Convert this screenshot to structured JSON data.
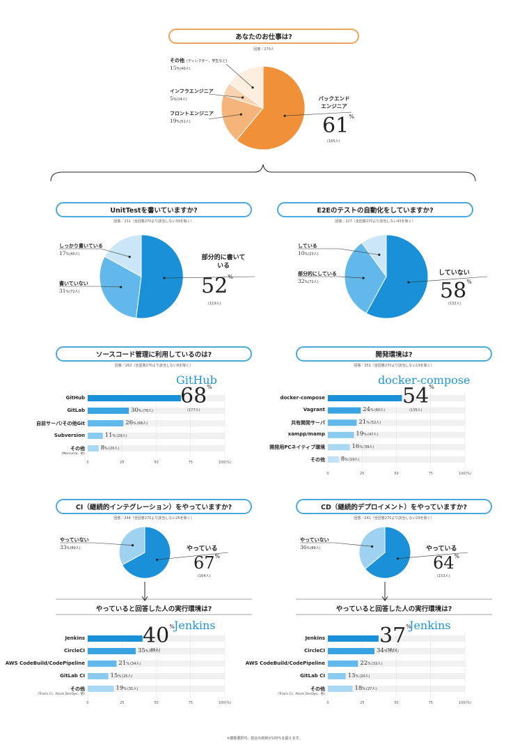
{
  "footnote": "※複数選択可。割合の総和が100%を超えます。",
  "chart_data": [
    {
      "id": "job",
      "type": "pie",
      "title": "あなたのお仕事は?",
      "note": "回答／270人",
      "slices": [
        {
          "label": "バックエンドエンジニア",
          "value": 61,
          "count": "(165人)"
        },
        {
          "label": "フロントエンジニア",
          "value": 19,
          "count": "(51人)"
        },
        {
          "label": "インフラエンジニア",
          "value": 5,
          "count": "(14人)"
        },
        {
          "label": "その他",
          "sublabel": "(ディレクター、学生など)",
          "value": 15,
          "count": "(40人)"
        }
      ],
      "colors": [
        "#f0913a",
        "#f5b47a",
        "#f9d3b0",
        "#fdeedf"
      ]
    },
    {
      "id": "unittest",
      "type": "pie",
      "title": "UnitTestを書いていますか?",
      "note": "回答／231（全回答270より該当しない39を除く）",
      "slices": [
        {
          "label": "部分的に書いている",
          "value": 52,
          "count": "(119人)"
        },
        {
          "label": "書いていない",
          "value": 31,
          "count": "(72人)"
        },
        {
          "label": "しっかり書いている",
          "value": 17,
          "count": "(40人)"
        }
      ],
      "colors": [
        "#1990d8",
        "#62b8ea",
        "#cbe6f6"
      ]
    },
    {
      "id": "e2e",
      "type": "pie",
      "title": "E2Eのテストの自動化をしていますか?",
      "note": "回答／227（全回答270より該当しない43を除く）",
      "slices": [
        {
          "label": "していない",
          "value": 58,
          "count": "(132人)"
        },
        {
          "label": "部分的にしている",
          "value": 32,
          "count": "(72人)"
        },
        {
          "label": "している",
          "value": 10,
          "count": "(23人)"
        }
      ],
      "colors": [
        "#1990d8",
        "#62b8ea",
        "#cbe6f6"
      ]
    },
    {
      "id": "vcs",
      "type": "bar",
      "title": "ソースコード管理に利用しているのは?",
      "note": "回答／262（全回答270より該当しない8を除く）",
      "highlight": "GitHub",
      "categories": [
        "GitHub",
        "GitLab",
        "自前サーバ/その他Git",
        "Subversion",
        "その他"
      ],
      "subcategory": "(Mercurial、他)",
      "values": [
        68,
        30,
        26,
        11,
        8
      ],
      "counts": [
        "(177人)",
        "(78人)",
        "(68人)",
        "(29人)",
        "(20人)"
      ],
      "xticks": [
        0,
        25,
        50,
        75,
        "100(%)"
      ],
      "xlim": [
        0,
        100
      ]
    },
    {
      "id": "devenv",
      "type": "bar",
      "title": "開発環境は?",
      "note": "回答／251（全回答270より該当しない19を除く）",
      "highlight": "docker-compose",
      "categories": [
        "docker-compose",
        "Vagrant",
        "共有開発サーバ",
        "xampp/mamp",
        "開発用PCネイティブ環境",
        "その他"
      ],
      "values": [
        54,
        24,
        21,
        19,
        16,
        8
      ],
      "counts": [
        "(135人)",
        "(60人)",
        "(52人)",
        "(47人)",
        "(39人)",
        "(19人)"
      ],
      "xticks": [
        0,
        25,
        50,
        75,
        "100(%)"
      ],
      "xlim": [
        0,
        100
      ]
    },
    {
      "id": "ci",
      "type": "pie",
      "title": "CI（継続的インテグレーション）をやっていますか?",
      "note": "回答／244（全回答270より該当しない26を除く）",
      "slices": [
        {
          "label": "やっている",
          "value": 67,
          "count": "(164人)"
        },
        {
          "label": "やっていない",
          "value": 33,
          "count": "(80人)"
        }
      ],
      "colors": [
        "#1990d8",
        "#9fd2f0"
      ]
    },
    {
      "id": "cd",
      "type": "pie",
      "title": "CD（継続的デプロイメント）をやっていますか?",
      "note": "回答／241（全回答270より該当しない29を除く）",
      "slices": [
        {
          "label": "やっている",
          "value": 64,
          "count": "(153人)"
        },
        {
          "label": "やっていない",
          "value": 36,
          "count": "(88人)"
        }
      ],
      "colors": [
        "#1990d8",
        "#9fd2f0"
      ]
    },
    {
      "id": "ci-env",
      "type": "bar",
      "title": "やっていると回答した人の実行環境は?",
      "highlight": "Jenkins",
      "categories": [
        "Jenkins",
        "CircleCI",
        "AWS CodeBuild/CodePipeline",
        "GitLab CI",
        "その他"
      ],
      "subcategory": "(Travis CI、Azure DevOps、他)",
      "values": [
        40,
        35,
        21,
        15,
        19
      ],
      "counts": [
        "(66人)",
        "(57人)",
        "(34人)",
        "(25人)",
        "(31人)"
      ],
      "xticks": [
        0,
        25,
        50,
        75,
        "100(%)"
      ],
      "xlim": [
        0,
        100
      ]
    },
    {
      "id": "cd-env",
      "type": "bar",
      "title": "やっていると回答した人の実行環境は?",
      "highlight": "Jenkins",
      "categories": [
        "Jenkins",
        "CircleCI",
        "AWS CodeBuild/CodePipeline",
        "GitLab CI",
        "その他"
      ],
      "subcategory": "(Travis CI、Azure DevOps、他)",
      "values": [
        37,
        34,
        22,
        13,
        18
      ],
      "counts": [
        "(58人)",
        "(52人)",
        "(33人)",
        "(20人)",
        "(27人)"
      ],
      "xticks": [
        0,
        25,
        50,
        75,
        "100(%)"
      ],
      "xlim": [
        0,
        100
      ]
    }
  ]
}
